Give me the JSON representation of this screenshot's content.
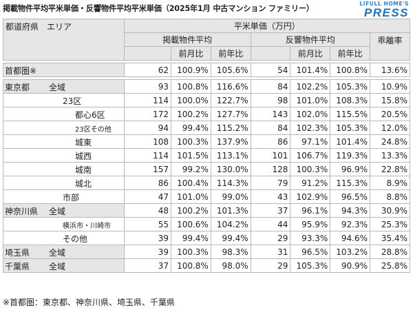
{
  "title": "掲載物件平均平米単価・反響物件平均平米単価（2025年1月 中古マンション ファミリー）",
  "logo": {
    "top": "LIFULL HOME'S",
    "main": "PRESS"
  },
  "header": {
    "area": "都道府県　エリア",
    "unit_price": "平米単価（万円）",
    "listing_avg": "掲載物件平均",
    "response_avg": "反響物件平均",
    "divergence": "乖離率",
    "mom": "前月比",
    "yoy": "前年比"
  },
  "rows": [
    {
      "pref": "首都圏※",
      "area": "",
      "price": "62",
      "mom": "100.9%",
      "yoy": "105.6%",
      "r_price": "54",
      "r_mom": "101.4%",
      "r_yoy": "100.8%",
      "div": "13.6%"
    },
    {
      "pref": "東京都",
      "area": "全域",
      "price": "93",
      "mom": "100.8%",
      "yoy": "116.6%",
      "r_price": "84",
      "r_mom": "102.2%",
      "r_yoy": "105.3%",
      "div": "10.9%"
    },
    {
      "pref": "",
      "area": "23区",
      "price": "114",
      "mom": "100.0%",
      "yoy": "122.7%",
      "r_price": "98",
      "r_mom": "101.0%",
      "r_yoy": "108.3%",
      "div": "15.8%"
    },
    {
      "pref": "",
      "area": "都心6区",
      "price": "172",
      "mom": "100.2%",
      "yoy": "127.7%",
      "r_price": "143",
      "r_mom": "102.0%",
      "r_yoy": "115.5%",
      "div": "20.5%"
    },
    {
      "pref": "",
      "area": "23区その他",
      "price": "94",
      "mom": "99.4%",
      "yoy": "115.2%",
      "r_price": "84",
      "r_mom": "102.3%",
      "r_yoy": "105.3%",
      "div": "12.0%"
    },
    {
      "pref": "",
      "area": "城東",
      "price": "108",
      "mom": "100.3%",
      "yoy": "137.9%",
      "r_price": "86",
      "r_mom": "97.1%",
      "r_yoy": "101.4%",
      "div": "24.8%"
    },
    {
      "pref": "",
      "area": "城西",
      "price": "114",
      "mom": "101.5%",
      "yoy": "113.1%",
      "r_price": "101",
      "r_mom": "106.7%",
      "r_yoy": "119.3%",
      "div": "13.3%"
    },
    {
      "pref": "",
      "area": "城南",
      "price": "157",
      "mom": "99.2%",
      "yoy": "130.0%",
      "r_price": "128",
      "r_mom": "100.3%",
      "r_yoy": "96.9%",
      "div": "22.8%"
    },
    {
      "pref": "",
      "area": "城北",
      "price": "86",
      "mom": "100.4%",
      "yoy": "114.3%",
      "r_price": "79",
      "r_mom": "91.2%",
      "r_yoy": "115.3%",
      "div": "8.9%"
    },
    {
      "pref": "",
      "area": "市部",
      "price": "47",
      "mom": "101.0%",
      "yoy": "99.0%",
      "r_price": "43",
      "r_mom": "102.9%",
      "r_yoy": "96.5%",
      "div": "8.8%"
    },
    {
      "pref": "神奈川県",
      "area": "全域",
      "price": "48",
      "mom": "100.2%",
      "yoy": "101.3%",
      "r_price": "37",
      "r_mom": "96.1%",
      "r_yoy": "94.3%",
      "div": "30.9%"
    },
    {
      "pref": "",
      "area": "横浜市・川崎市",
      "price": "55",
      "mom": "100.6%",
      "yoy": "104.2%",
      "r_price": "44",
      "r_mom": "95.9%",
      "r_yoy": "92.3%",
      "div": "25.3%"
    },
    {
      "pref": "",
      "area": "その他",
      "price": "39",
      "mom": "99.4%",
      "yoy": "99.4%",
      "r_price": "29",
      "r_mom": "93.3%",
      "r_yoy": "94.6%",
      "div": "35.4%"
    },
    {
      "pref": "埼玉県",
      "area": "全域",
      "price": "39",
      "mom": "100.3%",
      "yoy": "98.3%",
      "r_price": "31",
      "r_mom": "96.5%",
      "r_yoy": "103.2%",
      "div": "28.8%"
    },
    {
      "pref": "千葉県",
      "area": "全域",
      "price": "37",
      "mom": "100.8%",
      "yoy": "98.0%",
      "r_price": "29",
      "r_mom": "105.3%",
      "r_yoy": "90.9%",
      "div": "25.8%"
    }
  ],
  "footnote": "※首都圏：東京都、神奈川県、埼玉県、千葉県"
}
